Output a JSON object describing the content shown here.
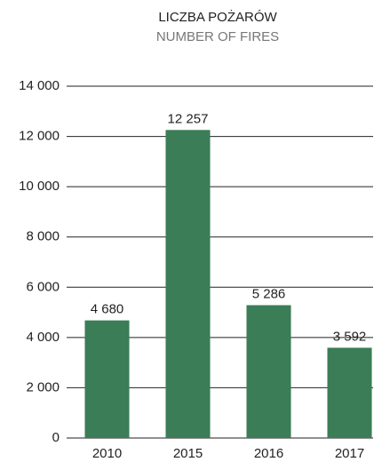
{
  "chart_data": {
    "type": "bar",
    "title": "LICZBA POŻARÓW",
    "subtitle": "NUMBER OF FIRES",
    "categories": [
      "2010",
      "2015",
      "2016",
      "2017"
    ],
    "values": [
      4680,
      12257,
      5286,
      3592
    ],
    "value_labels": [
      "4 680",
      "12 257",
      "5 286",
      "3 592"
    ],
    "color": "#3a7d57",
    "ylim": [
      0,
      14000
    ],
    "yticks": [
      0,
      {
        "value": 2000,
        "label": "2 000"
      },
      {
        "value": 4000,
        "label": "4 000"
      },
      {
        "value": 6000,
        "label": "6 000"
      },
      {
        "value": 8000,
        "label": "8 000"
      },
      {
        "value": 10000,
        "label": "10 000"
      },
      {
        "value": 12000,
        "label": "12 000"
      },
      {
        "value": 14000,
        "label": "14 000"
      }
    ],
    "grid": true
  }
}
